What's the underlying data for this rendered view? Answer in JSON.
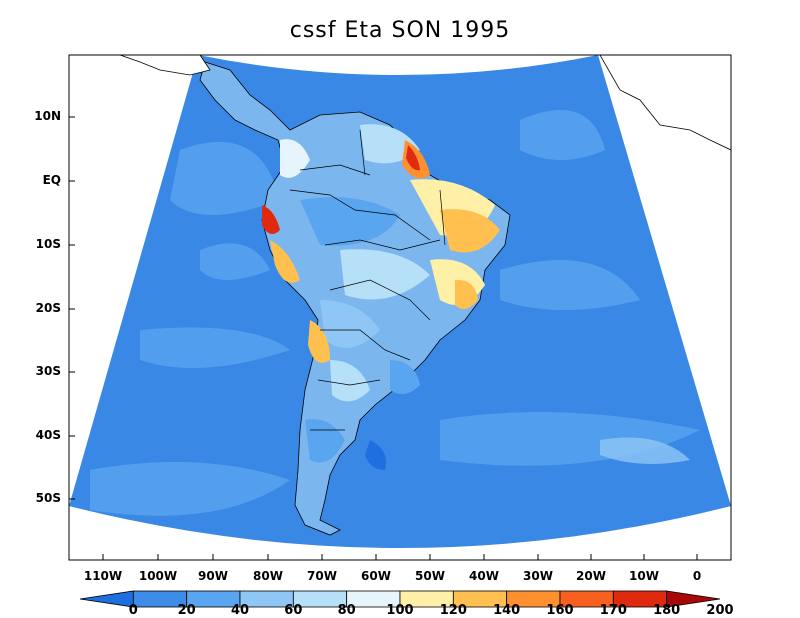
{
  "title": "cssf Eta SON 1995",
  "lat_labels": [
    "10N",
    "EQ",
    "10S",
    "20S",
    "30S",
    "40S",
    "50S"
  ],
  "lon_labels": [
    "110W",
    "100W",
    "90W",
    "80W",
    "70W",
    "60W",
    "50W",
    "40W",
    "30W",
    "20W",
    "10W",
    "0"
  ],
  "colorbar": {
    "levels": [
      "0",
      "20",
      "40",
      "60",
      "80",
      "100",
      "120",
      "140",
      "160",
      "170",
      "180",
      "200"
    ],
    "colors": [
      "#1e6fe0",
      "#3c8ce8",
      "#5aa5f0",
      "#8ec6f5",
      "#b6e0f7",
      "#e6f5fb",
      "#fff0a8",
      "#ffc050",
      "#ff9030",
      "#f86020",
      "#e02a10",
      "#a80808"
    ]
  },
  "colors": {
    "ocean": "#3a88e6",
    "ocean_light": "#5aa5f0",
    "land_base": "#7cb6ee",
    "outside": "#ffffff",
    "coast": "#000000"
  }
}
